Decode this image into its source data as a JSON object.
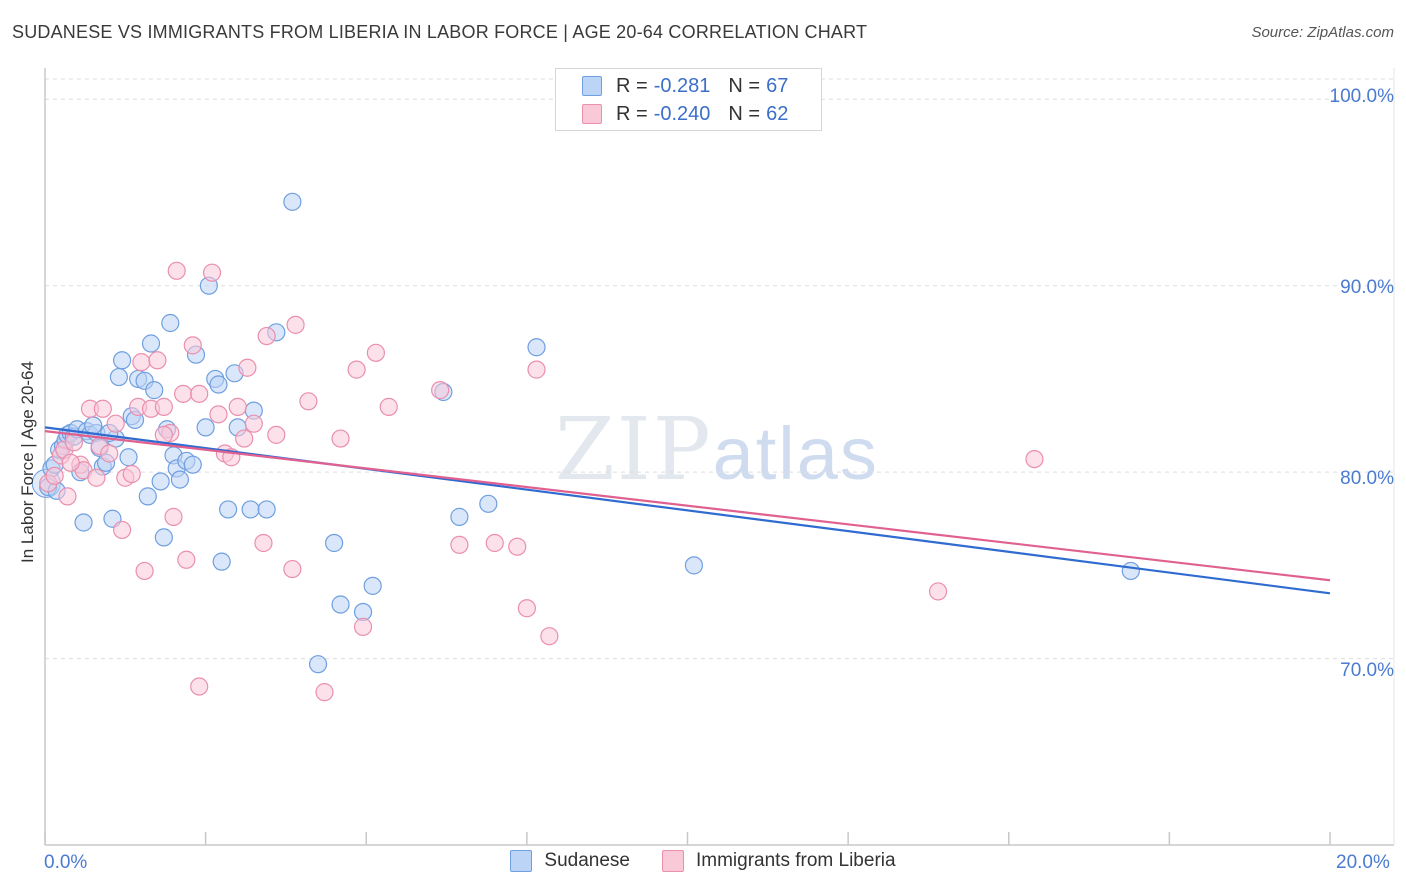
{
  "title": "SUDANESE VS IMMIGRANTS FROM LIBERIA IN LABOR FORCE | AGE 20-64 CORRELATION CHART",
  "source": "Source: ZipAtlas.com",
  "watermark": {
    "zip": "ZIP",
    "atlas": "atlas"
  },
  "legend": {
    "rows": [
      {
        "r_label": "R =",
        "r_value": "-0.281",
        "n_label": "N =",
        "n_value": "67"
      },
      {
        "r_label": "R =",
        "r_value": "-0.240",
        "n_label": "N =",
        "n_value": "62"
      }
    ]
  },
  "colors": {
    "sudanese_fill": "#bcd4f5",
    "sudanese_stroke": "#6f9fe0",
    "sudanese_line": "#2f6bd0",
    "liberia_fill": "#f9c9d8",
    "liberia_stroke": "#ea8fae",
    "liberia_line": "#e0608f",
    "grid": "#dddddd",
    "tick_text": "#4a7bd0"
  },
  "chart_data": {
    "type": "scatter",
    "title": "SUDANESE VS IMMIGRANTS FROM LIBERIA IN LABOR FORCE | AGE 20-64 CORRELATION CHART",
    "xlabel": "",
    "ylabel": "In Labor Force | Age 20-64",
    "xlim": [
      0,
      20
    ],
    "ylim": [
      60,
      102
    ],
    "x_tick_labels": [
      "0.0%",
      "20.0%"
    ],
    "y_ticks": [
      70,
      80,
      90,
      100
    ],
    "y_tick_labels": [
      "70.0%",
      "80.0%",
      "90.0%",
      "100.0%"
    ],
    "grid": true,
    "legend_position": "top-center",
    "series": [
      {
        "name": "Sudanese",
        "r": -0.281,
        "n": 67,
        "trend": {
          "x": [
            0,
            20
          ],
          "y": [
            82.4,
            73.5
          ]
        },
        "points": [
          [
            0.05,
            79.2
          ],
          [
            0.1,
            80.2
          ],
          [
            0.15,
            80.4
          ],
          [
            0.18,
            79.0
          ],
          [
            0.22,
            81.2
          ],
          [
            0.28,
            81.4
          ],
          [
            0.32,
            81.7
          ],
          [
            0.35,
            82.0
          ],
          [
            0.4,
            82.1
          ],
          [
            0.45,
            81.9
          ],
          [
            0.5,
            82.3
          ],
          [
            0.55,
            80.0
          ],
          [
            0.6,
            77.3
          ],
          [
            0.65,
            82.2
          ],
          [
            0.7,
            82.0
          ],
          [
            0.8,
            82.1
          ],
          [
            0.85,
            81.3
          ],
          [
            0.9,
            80.3
          ],
          [
            0.95,
            80.5
          ],
          [
            1.05,
            77.5
          ],
          [
            1.1,
            81.8
          ],
          [
            1.15,
            85.1
          ],
          [
            1.2,
            86.0
          ],
          [
            1.3,
            80.8
          ],
          [
            1.35,
            83.0
          ],
          [
            1.4,
            82.8
          ],
          [
            1.45,
            85.0
          ],
          [
            1.55,
            84.9
          ],
          [
            1.6,
            78.7
          ],
          [
            1.65,
            86.9
          ],
          [
            1.7,
            84.4
          ],
          [
            1.8,
            79.5
          ],
          [
            1.85,
            76.5
          ],
          [
            1.9,
            82.3
          ],
          [
            1.95,
            88.0
          ],
          [
            2.0,
            80.9
          ],
          [
            2.05,
            80.2
          ],
          [
            2.1,
            79.6
          ],
          [
            2.2,
            80.6
          ],
          [
            2.3,
            80.4
          ],
          [
            2.35,
            86.3
          ],
          [
            2.5,
            82.4
          ],
          [
            2.55,
            90.0
          ],
          [
            2.65,
            85.0
          ],
          [
            2.7,
            84.7
          ],
          [
            2.75,
            75.2
          ],
          [
            2.85,
            78.0
          ],
          [
            2.95,
            85.3
          ],
          [
            3.0,
            82.4
          ],
          [
            3.2,
            78.0
          ],
          [
            3.25,
            83.3
          ],
          [
            3.45,
            78.0
          ],
          [
            3.6,
            87.5
          ],
          [
            3.85,
            94.5
          ],
          [
            4.5,
            76.2
          ],
          [
            4.6,
            72.9
          ],
          [
            4.95,
            72.5
          ],
          [
            5.1,
            73.9
          ],
          [
            6.2,
            84.3
          ],
          [
            6.45,
            77.6
          ],
          [
            6.9,
            78.3
          ],
          [
            7.65,
            86.7
          ],
          [
            10.1,
            75.0
          ],
          [
            4.25,
            69.7
          ],
          [
            1.0,
            82.1
          ],
          [
            0.75,
            82.5
          ],
          [
            16.9,
            74.7
          ]
        ]
      },
      {
        "name": "Immigrants from Liberia",
        "r": -0.24,
        "n": 62,
        "trend": {
          "x": [
            0,
            20
          ],
          "y": [
            82.2,
            74.2
          ]
        },
        "points": [
          [
            0.05,
            79.4
          ],
          [
            0.15,
            79.8
          ],
          [
            0.25,
            80.9
          ],
          [
            0.3,
            81.2
          ],
          [
            0.35,
            78.7
          ],
          [
            0.45,
            81.6
          ],
          [
            0.55,
            80.4
          ],
          [
            0.6,
            80.1
          ],
          [
            0.7,
            83.4
          ],
          [
            0.8,
            79.7
          ],
          [
            0.85,
            81.4
          ],
          [
            0.9,
            83.4
          ],
          [
            1.0,
            81.0
          ],
          [
            1.1,
            82.6
          ],
          [
            1.2,
            76.9
          ],
          [
            1.25,
            79.7
          ],
          [
            1.35,
            79.9
          ],
          [
            1.45,
            83.5
          ],
          [
            1.5,
            85.9
          ],
          [
            1.55,
            74.7
          ],
          [
            1.65,
            83.4
          ],
          [
            1.75,
            86.0
          ],
          [
            1.85,
            83.5
          ],
          [
            1.95,
            82.1
          ],
          [
            2.0,
            77.6
          ],
          [
            2.05,
            90.8
          ],
          [
            2.15,
            84.2
          ],
          [
            2.2,
            75.3
          ],
          [
            2.3,
            86.8
          ],
          [
            2.4,
            84.2
          ],
          [
            2.6,
            90.7
          ],
          [
            2.7,
            83.1
          ],
          [
            2.8,
            81.0
          ],
          [
            2.9,
            80.8
          ],
          [
            3.0,
            83.5
          ],
          [
            3.1,
            81.8
          ],
          [
            3.15,
            85.6
          ],
          [
            3.25,
            82.6
          ],
          [
            3.4,
            76.2
          ],
          [
            3.45,
            87.3
          ],
          [
            3.6,
            82.0
          ],
          [
            3.85,
            74.8
          ],
          [
            4.1,
            83.8
          ],
          [
            4.35,
            68.2
          ],
          [
            4.6,
            81.8
          ],
          [
            4.85,
            85.5
          ],
          [
            4.95,
            71.7
          ],
          [
            5.15,
            86.4
          ],
          [
            5.35,
            83.5
          ],
          [
            6.15,
            84.4
          ],
          [
            6.45,
            76.1
          ],
          [
            7.0,
            76.2
          ],
          [
            7.35,
            76.0
          ],
          [
            7.5,
            72.7
          ],
          [
            7.65,
            85.5
          ],
          [
            7.85,
            71.2
          ],
          [
            2.4,
            68.5
          ],
          [
            3.9,
            87.9
          ],
          [
            0.4,
            80.5
          ],
          [
            1.85,
            82.0
          ],
          [
            13.9,
            73.6
          ],
          [
            15.4,
            80.7
          ]
        ]
      }
    ]
  }
}
